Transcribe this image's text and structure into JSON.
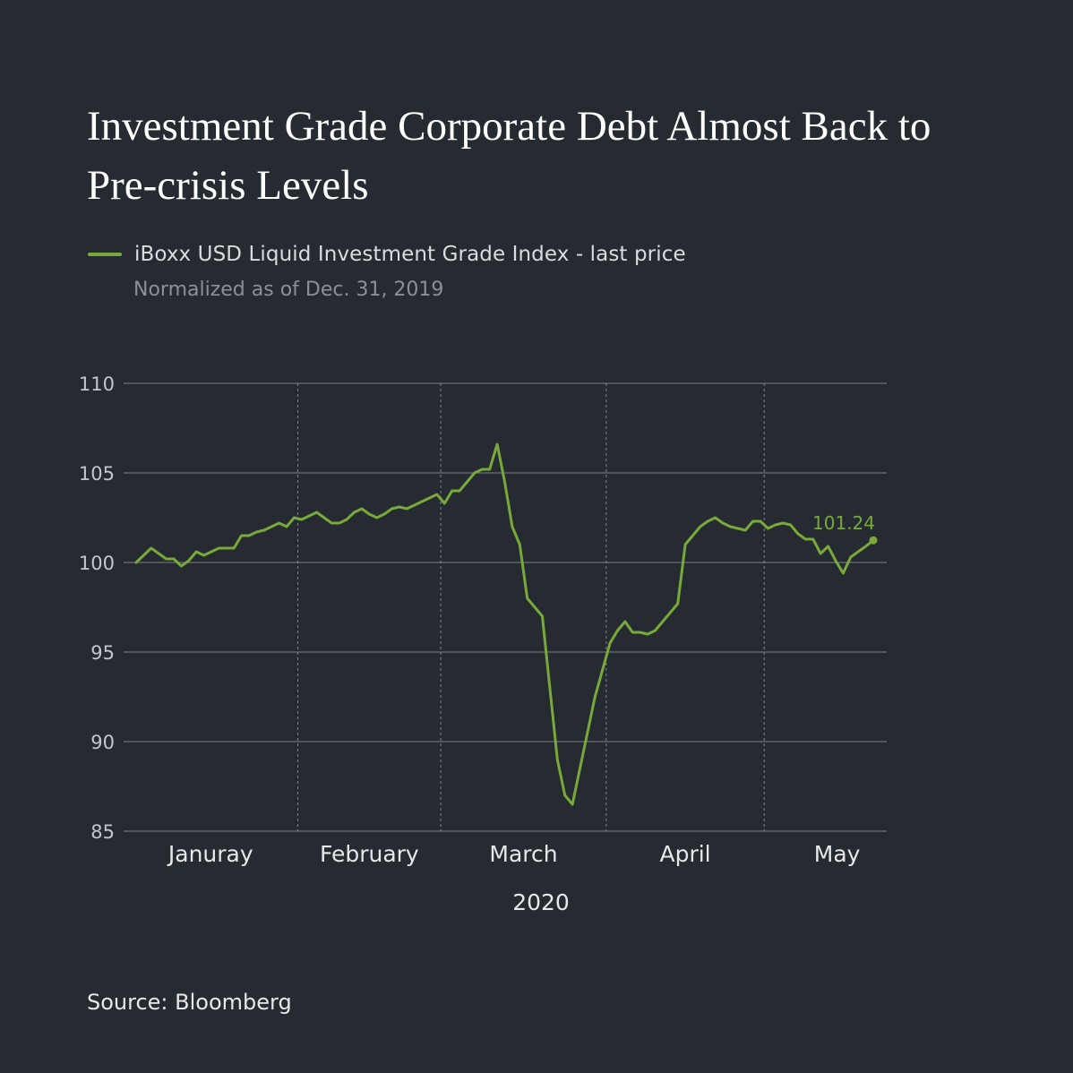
{
  "title": "Investment Grade Corporate Debt Almost Back to Pre-crisis Levels",
  "legend_label": "iBoxx USD Liquid Investment Grade Index - last price",
  "subtitle": "Normalized as of Dec. 31, 2019",
  "source": "Source: Bloomberg",
  "colors": {
    "background": "#252b31",
    "line": "#79a93b",
    "grid": "#8a9096",
    "text": "#d9dde0"
  },
  "chart_data": {
    "type": "line",
    "xlabel": "2020",
    "ylabel": "",
    "ylim": [
      85,
      110
    ],
    "yticks": [
      110,
      105,
      100,
      95,
      90,
      85
    ],
    "months": [
      "Januray",
      "February",
      "March",
      "April",
      "May"
    ],
    "month_dividers_after_index": [
      21,
      40,
      62,
      83
    ],
    "grid": "horizontal solid, vertical dashed month dividers",
    "end_label": "101.24",
    "series": [
      {
        "values": [
          100.0,
          100.4,
          100.8,
          100.5,
          100.2,
          100.2,
          99.8,
          100.1,
          100.6,
          100.4,
          100.6,
          100.8,
          100.8,
          100.8,
          101.5,
          101.5,
          101.7,
          101.8,
          102.0,
          102.2,
          102.0,
          102.5,
          102.4,
          102.6,
          102.8,
          102.5,
          102.2,
          102.2,
          102.4,
          102.8,
          103.0,
          102.7,
          102.5,
          102.7,
          103.0,
          103.1,
          103.0,
          103.2,
          103.4,
          103.6,
          103.8,
          103.3,
          104.0,
          104.0,
          104.5,
          105.0,
          105.2,
          105.2,
          106.6,
          104.5,
          102.0,
          101.0,
          98.0,
          97.5,
          97.0,
          93.0,
          89.0,
          87.0,
          86.5,
          88.5,
          90.5,
          92.5,
          94.0,
          95.5,
          96.2,
          96.7,
          96.1,
          96.1,
          96.0,
          96.2,
          96.7,
          97.2,
          97.7,
          101.0,
          101.5,
          102.0,
          102.3,
          102.5,
          102.2,
          102.0,
          101.9,
          101.8,
          102.3,
          102.3,
          101.9,
          102.1,
          102.2,
          102.1,
          101.6,
          101.3,
          101.3,
          100.5,
          100.9,
          100.1,
          99.4,
          100.3,
          100.6,
          100.9,
          101.24
        ]
      }
    ]
  }
}
